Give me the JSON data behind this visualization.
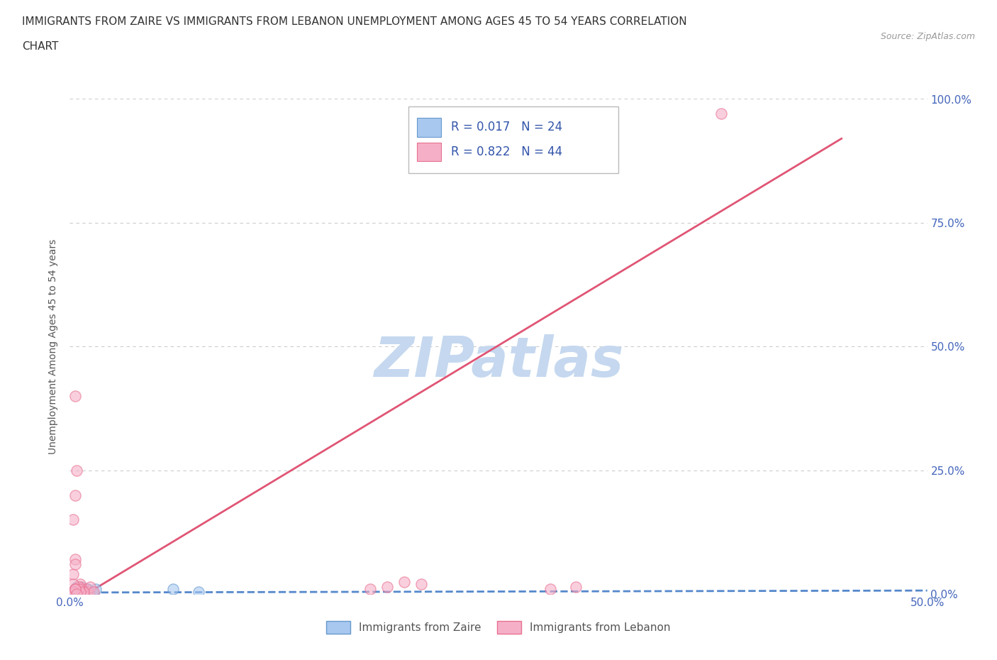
{
  "title_line1": "IMMIGRANTS FROM ZAIRE VS IMMIGRANTS FROM LEBANON UNEMPLOYMENT AMONG AGES 45 TO 54 YEARS CORRELATION",
  "title_line2": "CHART",
  "source": "Source: ZipAtlas.com",
  "ylabel": "Unemployment Among Ages 45 to 54 years",
  "xlim": [
    0.0,
    0.5
  ],
  "ylim": [
    0.0,
    1.0
  ],
  "yticks": [
    0.0,
    0.25,
    0.5,
    0.75,
    1.0
  ],
  "right_yticklabels": [
    "0.0%",
    "25.0%",
    "50.0%",
    "75.0%",
    "100.0%"
  ],
  "xtick_left_label": "0.0%",
  "xtick_right_label": "50.0%",
  "zaire_fill_color": "#a8c8f0",
  "zaire_edge_color": "#6699cc",
  "lebanon_fill_color": "#f5b0c8",
  "lebanon_edge_color": "#e87090",
  "zaire_line_color": "#5588cc",
  "lebanon_line_color": "#e05575",
  "grid_color": "#cccccc",
  "watermark_color": "#c5d8ef",
  "watermark_text": "ZIPatlas",
  "legend_R_zaire": "R = 0.017",
  "legend_N_zaire": "N = 24",
  "legend_R_lebanon": "R = 0.822",
  "legend_N_lebanon": "N = 44",
  "legend_text_color": "#3355aa",
  "background_color": "#ffffff",
  "tick_label_color": "#4466bb",
  "ylabel_color": "#555555",
  "bottom_legend_color": "#555555",
  "zaire_x": [
    0.002,
    0.003,
    0.004,
    0.005,
    0.006,
    0.007,
    0.008,
    0.009,
    0.01,
    0.011,
    0.013,
    0.014,
    0.015,
    0.004,
    0.005,
    0.006,
    0.007,
    0.008,
    0.003,
    0.004,
    0.06,
    0.075,
    0.003,
    0.01
  ],
  "zaire_y": [
    0.0,
    0.0,
    0.0,
    0.005,
    0.01,
    0.0,
    0.005,
    0.0,
    0.01,
    0.0,
    0.005,
    0.0,
    0.01,
    0.015,
    0.0,
    0.005,
    0.015,
    0.005,
    0.0,
    0.01,
    0.01,
    0.005,
    0.0,
    0.01
  ],
  "lebanon_x": [
    0.002,
    0.003,
    0.004,
    0.005,
    0.006,
    0.007,
    0.008,
    0.009,
    0.01,
    0.011,
    0.012,
    0.014,
    0.003,
    0.004,
    0.005,
    0.006,
    0.007,
    0.008,
    0.002,
    0.003,
    0.004,
    0.005,
    0.002,
    0.003,
    0.005,
    0.006,
    0.175,
    0.185,
    0.195,
    0.205,
    0.28,
    0.295,
    0.003,
    0.004,
    0.002,
    0.003,
    0.002,
    0.003,
    0.002,
    0.003,
    0.38,
    0.002,
    0.003,
    0.004
  ],
  "lebanon_y": [
    0.0,
    0.005,
    0.01,
    0.0,
    0.015,
    0.005,
    0.0,
    0.01,
    0.005,
    0.0,
    0.015,
    0.005,
    0.01,
    0.0,
    0.005,
    0.02,
    0.01,
    0.005,
    0.0,
    0.01,
    0.005,
    0.015,
    0.04,
    0.07,
    0.01,
    0.005,
    0.01,
    0.015,
    0.025,
    0.02,
    0.01,
    0.015,
    0.4,
    0.25,
    0.15,
    0.2,
    0.02,
    0.06,
    0.0,
    0.01,
    0.97,
    0.005,
    0.01,
    0.0
  ],
  "lebanon_line_endpoints": [
    [
      0.0,
      -0.02
    ],
    [
      0.45,
      0.92
    ]
  ],
  "zaire_line_endpoints": [
    [
      0.0,
      0.003
    ],
    [
      0.5,
      0.007
    ]
  ]
}
